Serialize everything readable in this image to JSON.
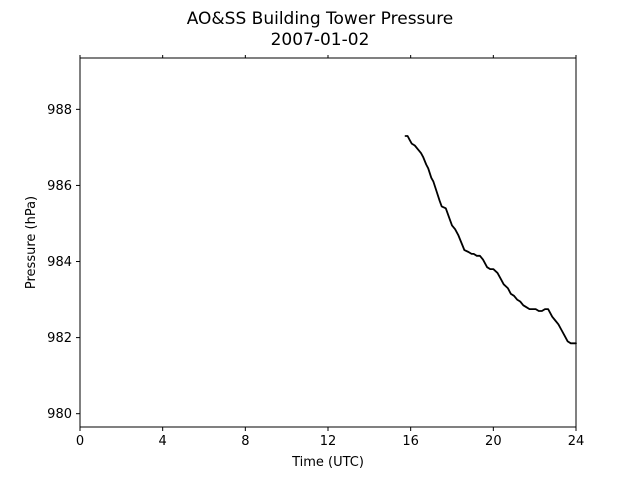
{
  "chart_data": {
    "type": "line",
    "title": "AO&SS Building Tower Pressure",
    "subtitle": "2007-01-02",
    "xlabel": "Time (UTC)",
    "ylabel": "Pressure (hPa)",
    "xlim": [
      0,
      24
    ],
    "ylim": [
      979.65,
      989.35
    ],
    "xticks": [
      0,
      4,
      8,
      12,
      16,
      20,
      24
    ],
    "yticks": [
      980,
      982,
      984,
      986,
      988
    ],
    "grid": false,
    "line_color": "#000000",
    "series": [
      {
        "x": [
          15.75,
          15.85,
          15.95,
          16.05,
          16.2,
          16.35,
          16.5,
          16.6,
          16.75,
          16.85,
          17.0,
          17.1,
          17.25,
          17.4,
          17.5,
          17.7,
          17.9,
          18.0,
          18.15,
          18.3,
          18.45,
          18.6,
          18.8,
          18.95,
          19.05,
          19.2,
          19.35,
          19.5,
          19.7,
          19.85,
          20.0,
          20.2,
          20.35,
          20.5,
          20.7,
          20.85,
          21.0,
          21.15,
          21.3,
          21.45,
          21.6,
          21.75,
          21.9,
          22.05,
          22.2,
          22.35,
          22.5,
          22.65,
          22.75,
          22.85,
          23.0,
          23.15,
          23.3,
          23.45,
          23.6,
          23.75,
          23.85,
          24.0
        ],
        "y": [
          987.3,
          987.3,
          987.2,
          987.1,
          987.05,
          986.95,
          986.85,
          986.75,
          986.55,
          986.45,
          986.2,
          986.1,
          985.85,
          985.6,
          985.45,
          985.4,
          985.1,
          984.95,
          984.85,
          984.7,
          984.5,
          984.3,
          984.25,
          984.2,
          984.2,
          984.15,
          984.15,
          984.05,
          983.85,
          983.8,
          983.8,
          983.7,
          983.55,
          983.4,
          983.3,
          983.15,
          983.1,
          983.0,
          982.95,
          982.85,
          982.8,
          982.75,
          982.75,
          982.75,
          982.7,
          982.7,
          982.75,
          982.75,
          982.65,
          982.55,
          982.45,
          982.35,
          982.2,
          982.05,
          981.9,
          981.85,
          981.85,
          981.85
        ]
      }
    ]
  }
}
